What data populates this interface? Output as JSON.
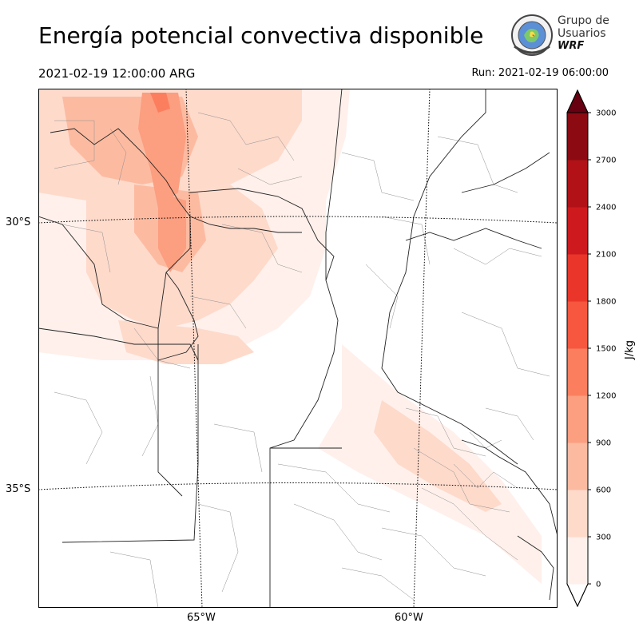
{
  "header": {
    "title": "Energía potencial convectiva disponible",
    "valid_time": "2021-02-19 12:00:00 ARG",
    "run_time": "Run: 2021-02-19 06:00:00"
  },
  "logo": {
    "line1": "Grupo de",
    "line2": "Usuarios",
    "line3": "WRF"
  },
  "map": {
    "lat_labels": [
      "30°S",
      "35°S"
    ],
    "lon_labels": [
      "65°W",
      "60°W"
    ]
  },
  "colorbar": {
    "label": "J/kg",
    "ticks": [
      "0",
      "300",
      "600",
      "900",
      "1200",
      "1500",
      "1800",
      "2100",
      "2400",
      "2700",
      "3000"
    ],
    "colors": [
      "#fff0eb",
      "#fedacb",
      "#fcbba1",
      "#fc9e80",
      "#fb7f5f",
      "#f6573e",
      "#ea362a",
      "#ce1a1e",
      "#b11117",
      "#8c0a12",
      "#670010"
    ]
  }
}
